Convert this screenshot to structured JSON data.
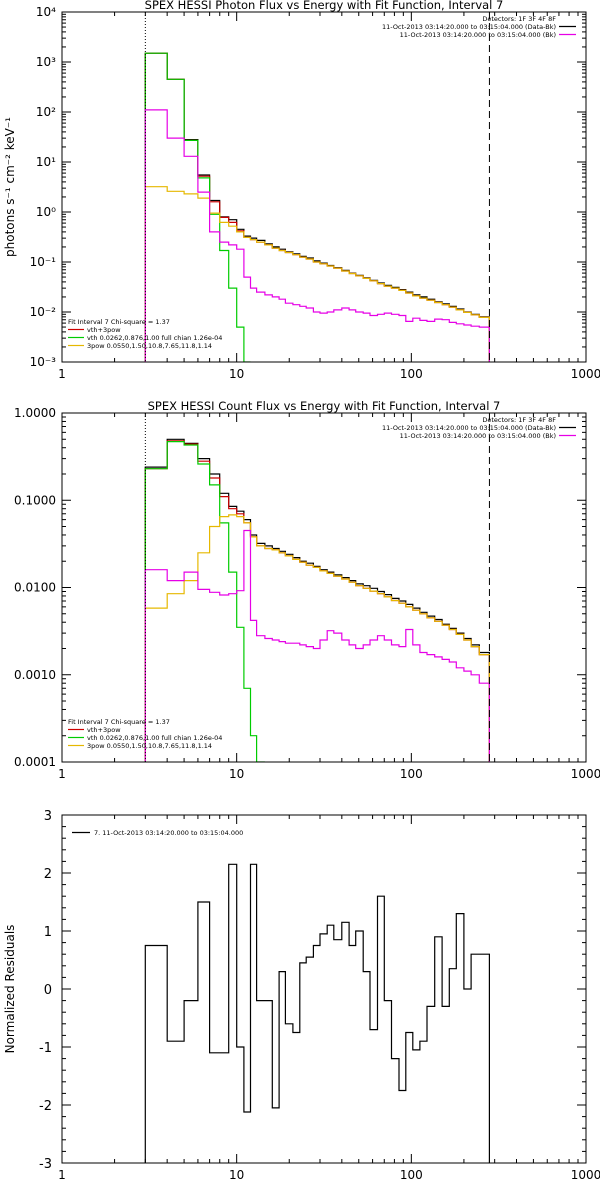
{
  "chart_data": [
    {
      "type": "line",
      "title": "SPEX HESSI Photon Flux vs Energy with Fit Function, Interval 7",
      "xlabel": "",
      "ylabel": "photons s⁻¹ cm⁻² keV⁻¹",
      "xscale": "log",
      "yscale": "log",
      "xlim": [
        1,
        1000
      ],
      "ylim": [
        0.001,
        10000
      ],
      "x_ticks": [
        "1",
        "10",
        "100",
        "1000"
      ],
      "y_ticks": [
        "10⁻³",
        "10⁻²",
        "10⁻¹",
        "10⁰",
        "10¹",
        "10²",
        "10³",
        "10⁴"
      ],
      "vlines": [
        {
          "x": 3,
          "style": "dotted"
        },
        {
          "x": 280,
          "style": "dashed"
        }
      ],
      "legend_top": [
        "Detectors: 1F 3F 4F 8F",
        "11-Oct-2013 03:14:20.000 to 03:15:04.000 (Data-Bk)",
        "11-Oct-2013 03:14:20.000 to 03:15:04.000 (Bk)"
      ],
      "legend_bottom": [
        "Fit Interval 7   Chi-square = 1.37",
        "vth+3pow",
        "vth 0.0262,0.876,1.00  full chian 1.26e-04",
        "3pow 0.0550,1.50,10.8,7.65,11.8,1.14"
      ],
      "x_edges": [
        3,
        4,
        5,
        6,
        7,
        8,
        9,
        10,
        11,
        12,
        13,
        14.5,
        16,
        17.5,
        19,
        21,
        23,
        25,
        27.5,
        30,
        33,
        36,
        40,
        44,
        48,
        53,
        58,
        64,
        70,
        77,
        85,
        93,
        102,
        112,
        123,
        136,
        150,
        165,
        181,
        200,
        220,
        245,
        280
      ],
      "series": [
        {
          "name": "Data-Bk",
          "color": "#000000",
          "values": [
            1500,
            450,
            28,
            5.5,
            1.7,
            0.8,
            0.7,
            0.45,
            0.33,
            0.3,
            0.27,
            0.23,
            0.2,
            0.18,
            0.16,
            0.145,
            0.13,
            0.12,
            0.105,
            0.095,
            0.085,
            0.077,
            0.068,
            0.06,
            0.054,
            0.048,
            0.043,
            0.038,
            0.034,
            0.031,
            0.028,
            0.025,
            0.022,
            0.02,
            0.018,
            0.016,
            0.0145,
            0.013,
            0.0115,
            0.01,
            0.009,
            0.008
          ]
        },
        {
          "name": "vth+3pow",
          "color": "#cc0000",
          "values": [
            1500,
            450,
            27,
            5.2,
            1.6,
            0.78,
            0.62,
            0.42,
            0.31,
            0.28,
            0.25,
            0.22,
            0.19,
            0.17,
            0.155,
            0.14,
            0.125,
            0.115,
            0.1,
            0.092,
            0.083,
            0.075,
            0.066,
            0.059,
            0.053,
            0.047,
            0.042,
            0.037,
            0.033,
            0.03,
            0.027,
            0.024,
            0.021,
            0.019,
            0.0172,
            0.0155,
            0.014,
            0.0125,
            0.011,
            0.0098,
            0.0088,
            0.0078
          ]
        },
        {
          "name": "vth",
          "color": "#00cc00",
          "values": [
            1500,
            450,
            27,
            4.8,
            0.9,
            0.17,
            0.03,
            0.005,
            0.0008
          ]
        },
        {
          "name": "3pow",
          "color": "#e6b800",
          "values": [
            3.2,
            2.6,
            2.3,
            1.9,
            0.95,
            0.62,
            0.52,
            0.4,
            0.31,
            0.28,
            0.25,
            0.22,
            0.19,
            0.17,
            0.155,
            0.14,
            0.125,
            0.115,
            0.1,
            0.092,
            0.083,
            0.075,
            0.066,
            0.059,
            0.053,
            0.047,
            0.042,
            0.037,
            0.033,
            0.03,
            0.027,
            0.024,
            0.021,
            0.019,
            0.0172,
            0.0155,
            0.014,
            0.0125,
            0.011,
            0.0098,
            0.0088,
            0.0078
          ]
        },
        {
          "name": "Bk",
          "color": "#e600e6",
          "values": [
            110,
            30,
            13,
            2.5,
            0.4,
            0.25,
            0.22,
            0.18,
            0.05,
            0.03,
            0.025,
            0.022,
            0.02,
            0.018,
            0.015,
            0.014,
            0.013,
            0.012,
            0.01,
            0.0095,
            0.01,
            0.011,
            0.012,
            0.011,
            0.01,
            0.0095,
            0.0085,
            0.009,
            0.0095,
            0.009,
            0.0085,
            0.0065,
            0.0075,
            0.0068,
            0.0065,
            0.0072,
            0.007,
            0.0062,
            0.0058,
            0.0055,
            0.0052,
            0.005
          ]
        }
      ]
    },
    {
      "type": "line",
      "title": "SPEX HESSI Count Flux vs Energy with Fit Function, Interval 7",
      "xlabel": "",
      "ylabel": "",
      "xscale": "log",
      "yscale": "log",
      "xlim": [
        1,
        1000
      ],
      "ylim": [
        0.0001,
        1.0
      ],
      "x_ticks": [
        "1",
        "10",
        "100",
        "1000"
      ],
      "y_ticks": [
        "0.0001",
        "0.0010",
        "0.0100",
        "0.1000",
        "1.0000"
      ],
      "vlines": [
        {
          "x": 3,
          "style": "dotted"
        },
        {
          "x": 280,
          "style": "dashed"
        }
      ],
      "legend_top": [
        "Detectors: 1F 3F 4F 8F",
        "11-Oct-2013 03:14:20.000 to 03:15:04.000 (Data-Bk)",
        "11-Oct-2013 03:14:20.000 to 03:15:04.000 (Bk)"
      ],
      "legend_bottom": [
        "Fit Interval 7   Chi-square = 1.37",
        "vth+3pow",
        "vth 0.0262,0.876,1.00  full chian 1.26e-04",
        "3pow 0.0550,1.50,10.8,7.65,11.8,1.14"
      ],
      "x_edges": [
        3,
        4,
        5,
        6,
        7,
        8,
        9,
        10,
        11,
        12,
        13,
        14.5,
        16,
        17.5,
        19,
        21,
        23,
        25,
        27.5,
        30,
        33,
        36,
        40,
        44,
        48,
        53,
        58,
        64,
        70,
        77,
        85,
        93,
        102,
        112,
        123,
        136,
        150,
        165,
        181,
        200,
        220,
        245,
        280
      ],
      "series": [
        {
          "name": "Data-Bk",
          "color": "#000000",
          "values": [
            0.24,
            0.5,
            0.45,
            0.3,
            0.2,
            0.12,
            0.085,
            0.075,
            0.06,
            0.04,
            0.032,
            0.03,
            0.028,
            0.026,
            0.024,
            0.022,
            0.02,
            0.019,
            0.0175,
            0.016,
            0.015,
            0.014,
            0.013,
            0.012,
            0.011,
            0.0105,
            0.0098,
            0.009,
            0.0083,
            0.0075,
            0.007,
            0.0064,
            0.0058,
            0.0052,
            0.0047,
            0.0043,
            0.0038,
            0.0034,
            0.003,
            0.0026,
            0.0022,
            0.0018
          ]
        },
        {
          "name": "vth+3pow",
          "color": "#cc0000",
          "values": [
            0.23,
            0.48,
            0.44,
            0.28,
            0.18,
            0.11,
            0.08,
            0.07,
            0.055,
            0.038,
            0.03,
            0.028,
            0.027,
            0.025,
            0.023,
            0.021,
            0.0195,
            0.018,
            0.017,
            0.0155,
            0.0145,
            0.0135,
            0.0125,
            0.0115,
            0.0105,
            0.0098,
            0.0091,
            0.0085,
            0.0078,
            0.0071,
            0.0066,
            0.006,
            0.0055,
            0.005,
            0.0045,
            0.0041,
            0.0037,
            0.0033,
            0.0029,
            0.0025,
            0.0021,
            0.0017
          ]
        },
        {
          "name": "vth",
          "color": "#00cc00",
          "values": [
            0.23,
            0.47,
            0.43,
            0.26,
            0.15,
            0.055,
            0.015,
            0.0035,
            0.0007,
            0.0002,
            8e-05
          ]
        },
        {
          "name": "3pow",
          "color": "#e6b800",
          "values": [
            0.0058,
            0.0085,
            0.012,
            0.025,
            0.05,
            0.065,
            0.068,
            0.065,
            0.055,
            0.038,
            0.03,
            0.028,
            0.027,
            0.025,
            0.023,
            0.021,
            0.0195,
            0.018,
            0.017,
            0.0155,
            0.0145,
            0.0135,
            0.0125,
            0.0115,
            0.0105,
            0.0098,
            0.0091,
            0.0085,
            0.0078,
            0.0071,
            0.0066,
            0.006,
            0.0055,
            0.005,
            0.0045,
            0.0041,
            0.0037,
            0.0033,
            0.0029,
            0.0025,
            0.0021,
            0.0017
          ]
        },
        {
          "name": "Bk",
          "color": "#e600e6",
          "values": [
            0.016,
            0.012,
            0.015,
            0.0095,
            0.0088,
            0.0082,
            0.0085,
            0.0092,
            0.045,
            0.0042,
            0.0028,
            0.0026,
            0.0025,
            0.0024,
            0.0023,
            0.0023,
            0.0022,
            0.0021,
            0.002,
            0.0025,
            0.0032,
            0.003,
            0.0025,
            0.0022,
            0.002,
            0.0022,
            0.0025,
            0.0028,
            0.0025,
            0.0022,
            0.0021,
            0.0033,
            0.0022,
            0.0018,
            0.0017,
            0.0016,
            0.0015,
            0.0014,
            0.0012,
            0.0011,
            0.001,
            0.0008
          ]
        }
      ]
    },
    {
      "type": "line",
      "title": "",
      "xlabel": "",
      "ylabel": "Normalized Residuals",
      "xscale": "log",
      "yscale": "linear",
      "xlim": [
        1,
        1000
      ],
      "ylim": [
        -3,
        3
      ],
      "x_ticks": [
        "1",
        "10",
        "100",
        "1000"
      ],
      "y_ticks": [
        "-3",
        "-2",
        "-1",
        "0",
        "1",
        "2",
        "3"
      ],
      "legend": [
        "7. 11-Oct-2013 03:14:20.000 to 03:15:04.000"
      ],
      "x_edges": [
        3,
        4,
        5,
        6,
        7,
        8,
        9,
        10,
        11,
        12,
        13,
        14.5,
        16,
        17.5,
        19,
        21,
        23,
        25,
        27.5,
        30,
        33,
        36,
        40,
        44,
        48,
        53,
        58,
        64,
        70,
        77,
        85,
        93,
        102,
        112,
        123,
        136,
        150,
        165,
        181,
        200,
        220,
        245,
        280
      ],
      "series": [
        {
          "name": "residuals",
          "color": "#000000",
          "values": [
            0.75,
            -0.9,
            -0.2,
            1.5,
            -1.1,
            -1.1,
            2.15,
            -1.0,
            -2.12,
            2.15,
            -0.2,
            -0.2,
            -2.05,
            0.3,
            -0.6,
            -0.75,
            0.45,
            0.55,
            0.75,
            0.95,
            1.1,
            0.85,
            1.15,
            0.75,
            1.0,
            0.3,
            -0.7,
            1.6,
            -0.2,
            -1.2,
            -1.75,
            -0.75,
            -1.05,
            -0.9,
            -0.3,
            0.9,
            -0.3,
            0.35,
            1.3,
            0.0,
            0.6,
            0.6
          ]
        }
      ]
    }
  ]
}
